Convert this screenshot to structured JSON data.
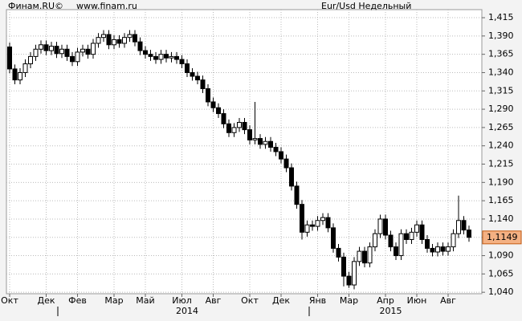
{
  "chart_data": {
    "type": "candlestick",
    "source": "Финам.RU©",
    "site": "www.finam.ru",
    "title": "Eur/Usd Недельный",
    "categories": [
      "Окт",
      null,
      null,
      null,
      null,
      null,
      null,
      "Дек",
      null,
      null,
      null,
      null,
      null,
      "Фев",
      null,
      null,
      null,
      null,
      null,
      null,
      "Мар",
      null,
      null,
      null,
      null,
      null,
      "Май",
      null,
      null,
      null,
      null,
      null,
      null,
      "Июл",
      null,
      null,
      null,
      null,
      null,
      "Авг",
      null,
      null,
      null,
      null,
      null,
      null,
      "Окт",
      null,
      null,
      null,
      null,
      null,
      "Дек",
      null,
      null,
      null,
      null,
      null,
      null,
      "Янв",
      null,
      null,
      null,
      null,
      null,
      "Мар",
      null,
      null,
      null,
      null,
      null,
      null,
      "Апр",
      null,
      null,
      null,
      null,
      null,
      "Июн",
      null,
      null,
      null,
      null,
      null,
      "Авг",
      null,
      null,
      null,
      null
    ],
    "years": [
      null,
      null,
      null,
      null,
      null,
      null,
      null,
      null,
      null,
      null,
      null,
      null,
      null,
      null,
      null,
      null,
      null,
      null,
      null,
      null,
      null,
      null,
      null,
      null,
      null,
      null,
      null,
      null,
      null,
      null,
      null,
      null,
      null,
      null,
      "2014",
      null,
      null,
      null,
      null,
      null,
      null,
      null,
      null,
      null,
      null,
      null,
      null,
      null,
      null,
      null,
      null,
      null,
      null,
      null,
      null,
      null,
      null,
      null,
      null,
      null,
      null,
      null,
      null,
      null,
      null,
      null,
      null,
      null,
      null,
      null,
      null,
      null,
      null,
      "2015",
      null,
      null,
      null,
      null,
      null,
      null,
      null,
      null,
      null,
      null,
      null,
      null,
      null,
      null,
      null
    ],
    "open": [
      1.375,
      1.345,
      1.33,
      1.34,
      1.352,
      1.362,
      1.372,
      1.378,
      1.37,
      1.376,
      1.366,
      1.372,
      1.362,
      1.355,
      1.368,
      1.372,
      1.365,
      1.38,
      1.388,
      1.392,
      1.378,
      1.385,
      1.38,
      1.388,
      1.392,
      1.382,
      1.37,
      1.365,
      1.362,
      1.358,
      1.365,
      1.36,
      1.362,
      1.358,
      1.352,
      1.34,
      1.335,
      1.33,
      1.318,
      1.3,
      1.292,
      1.284,
      1.27,
      1.258,
      1.265,
      1.272,
      1.262,
      1.248,
      1.25,
      1.242,
      1.246,
      1.238,
      1.232,
      1.222,
      1.21,
      1.185,
      1.16,
      1.122,
      1.132,
      1.13,
      1.138,
      1.142,
      1.128,
      1.1,
      1.088,
      1.062,
      1.05,
      1.082,
      1.096,
      1.08,
      1.102,
      1.12,
      1.14,
      1.118,
      1.102,
      1.09,
      1.12,
      1.112,
      1.122,
      1.132,
      1.112,
      1.1,
      1.095,
      1.102,
      1.096,
      1.102,
      1.12,
      1.138,
      1.125
    ],
    "high": [
      1.381,
      1.351,
      1.346,
      1.358,
      1.368,
      1.378,
      1.384,
      1.384,
      1.382,
      1.382,
      1.378,
      1.378,
      1.368,
      1.374,
      1.378,
      1.378,
      1.386,
      1.394,
      1.398,
      1.398,
      1.391,
      1.391,
      1.394,
      1.398,
      1.398,
      1.388,
      1.376,
      1.371,
      1.368,
      1.371,
      1.371,
      1.368,
      1.368,
      1.364,
      1.358,
      1.346,
      1.341,
      1.336,
      1.324,
      1.306,
      1.298,
      1.29,
      1.276,
      1.271,
      1.278,
      1.278,
      1.268,
      1.3,
      1.256,
      1.252,
      1.252,
      1.244,
      1.238,
      1.228,
      1.216,
      1.191,
      1.166,
      1.138,
      1.138,
      1.144,
      1.148,
      1.148,
      1.134,
      1.106,
      1.094,
      1.068,
      1.088,
      1.102,
      1.102,
      1.108,
      1.126,
      1.146,
      1.146,
      1.124,
      1.108,
      1.126,
      1.126,
      1.128,
      1.138,
      1.138,
      1.118,
      1.106,
      1.108,
      1.108,
      1.108,
      1.126,
      1.172,
      1.144,
      1.131
    ],
    "low": [
      1.339,
      1.324,
      1.324,
      1.334,
      1.346,
      1.356,
      1.366,
      1.364,
      1.364,
      1.36,
      1.36,
      1.356,
      1.349,
      1.349,
      1.362,
      1.359,
      1.359,
      1.374,
      1.382,
      1.372,
      1.372,
      1.374,
      1.374,
      1.382,
      1.376,
      1.364,
      1.359,
      1.356,
      1.352,
      1.352,
      1.354,
      1.354,
      1.352,
      1.346,
      1.334,
      1.329,
      1.324,
      1.312,
      1.294,
      1.286,
      1.278,
      1.264,
      1.252,
      1.252,
      1.259,
      1.256,
      1.242,
      1.242,
      1.236,
      1.236,
      1.232,
      1.226,
      1.216,
      1.204,
      1.179,
      1.154,
      1.112,
      1.116,
      1.124,
      1.124,
      1.132,
      1.122,
      1.094,
      1.082,
      1.048,
      1.046,
      1.044,
      1.076,
      1.074,
      1.074,
      1.096,
      1.114,
      1.112,
      1.096,
      1.084,
      1.084,
      1.106,
      1.106,
      1.116,
      1.106,
      1.094,
      1.089,
      1.089,
      1.09,
      1.09,
      1.096,
      1.114,
      1.119,
      1.109
    ],
    "close": [
      1.345,
      1.33,
      1.34,
      1.352,
      1.362,
      1.372,
      1.378,
      1.37,
      1.376,
      1.366,
      1.372,
      1.362,
      1.355,
      1.368,
      1.372,
      1.365,
      1.38,
      1.388,
      1.392,
      1.378,
      1.385,
      1.38,
      1.388,
      1.392,
      1.382,
      1.37,
      1.365,
      1.362,
      1.358,
      1.365,
      1.36,
      1.362,
      1.358,
      1.352,
      1.34,
      1.335,
      1.33,
      1.318,
      1.3,
      1.292,
      1.284,
      1.27,
      1.258,
      1.265,
      1.272,
      1.262,
      1.248,
      1.25,
      1.242,
      1.246,
      1.238,
      1.232,
      1.222,
      1.21,
      1.185,
      1.16,
      1.122,
      1.132,
      1.13,
      1.138,
      1.142,
      1.128,
      1.1,
      1.088,
      1.062,
      1.05,
      1.082,
      1.096,
      1.08,
      1.102,
      1.12,
      1.14,
      1.118,
      1.102,
      1.09,
      1.12,
      1.112,
      1.122,
      1.132,
      1.112,
      1.1,
      1.095,
      1.102,
      1.096,
      1.102,
      1.12,
      1.138,
      1.125,
      1.115
    ],
    "last_price": {
      "value": 1.1149,
      "label": "1,1149"
    },
    "ylim": [
      1.038,
      1.426
    ],
    "yticks": [
      {
        "value": 1.04,
        "label": "1,040"
      },
      {
        "value": 1.065,
        "label": "1,065"
      },
      {
        "value": 1.09,
        "label": "1,090"
      },
      {
        "value": 1.115,
        "label": "1,115"
      },
      {
        "value": 1.14,
        "label": "1,140"
      },
      {
        "value": 1.165,
        "label": "1,165"
      },
      {
        "value": 1.19,
        "label": "1,190"
      },
      {
        "value": 1.215,
        "label": "1,215"
      },
      {
        "value": 1.24,
        "label": "1,240"
      },
      {
        "value": 1.265,
        "label": "1,265"
      },
      {
        "value": 1.29,
        "label": "1,290"
      },
      {
        "value": 1.315,
        "label": "1,315"
      },
      {
        "value": 1.34,
        "label": "1,340"
      },
      {
        "value": 1.365,
        "label": "1,365"
      },
      {
        "value": 1.39,
        "label": "1,390"
      },
      {
        "value": 1.415,
        "label": "1,415"
      }
    ],
    "grid": true,
    "up_color": "#ffffff",
    "down_color": "#000000",
    "tag_color": "#f4b183"
  }
}
